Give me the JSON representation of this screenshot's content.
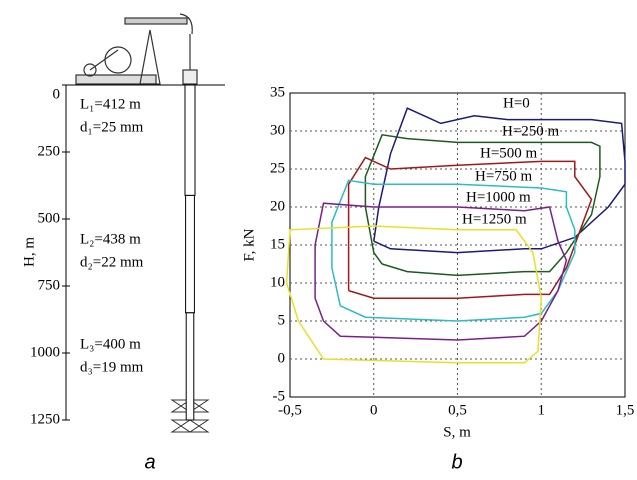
{
  "chart_data": [
    {
      "type": "well",
      "caption": "a",
      "ylabel": "H, m",
      "ylim": [
        0,
        1250
      ],
      "yticks": [
        0,
        250,
        500,
        750,
        1000,
        1250
      ],
      "sections": [
        {
          "label": "L₁=412 m",
          "diameter_label": "d₁=25 mm",
          "length": 412,
          "diameter": 25
        },
        {
          "label": "L₂=438 m",
          "diameter_label": "d₂=22 mm",
          "length": 438,
          "diameter": 22
        },
        {
          "label": "L₃=400 m",
          "diameter_label": "d₃=19 mm",
          "length": 400,
          "diameter": 19
        }
      ]
    },
    {
      "type": "line",
      "caption": "b",
      "xlabel": "S, m",
      "ylabel": "F, kN",
      "xlim": [
        -0.5,
        1.5
      ],
      "xticks": [
        {
          "value": -0.5,
          "label": "-0,5"
        },
        0,
        {
          "value": 0.5,
          "label": "0,5"
        },
        1,
        {
          "value": 1.5,
          "label": "1,5"
        }
      ],
      "ylim": [
        -5,
        35
      ],
      "yticks": [
        -5,
        0,
        5,
        10,
        15,
        20,
        25,
        30,
        35
      ],
      "grid": true,
      "series": [
        {
          "name": "H=0",
          "color": "#1a1a7a",
          "x": [
            0,
            0.1,
            0.5,
            0.9,
            1.0,
            1.2,
            1.4,
            1.5,
            1.5,
            1.48,
            1.3,
            1.0,
            0.8,
            0.6,
            0.4,
            0.2,
            0.1,
            0.03,
            0
          ],
          "values": [
            15.5,
            14.5,
            14,
            14.5,
            14.5,
            16,
            20,
            23,
            26,
            31,
            31.5,
            31.5,
            31.5,
            32,
            31,
            33,
            27,
            20,
            15.5
          ]
        },
        {
          "name": "H=250 m",
          "color": "#1e5a1e",
          "x": [
            0.05,
            0.2,
            0.5,
            0.9,
            1.05,
            1.15,
            1.3,
            1.35,
            1.35,
            1.3,
            1.0,
            0.5,
            0.2,
            0.05,
            -0.05,
            -0.05,
            0,
            0.05
          ],
          "values": [
            12.5,
            11.5,
            11,
            11.5,
            11.5,
            14,
            19,
            24,
            28,
            28.5,
            28.5,
            28.5,
            29,
            29.5,
            24,
            20,
            14,
            12.5
          ]
        },
        {
          "name": "H=500 m",
          "color": "#a01818",
          "x": [
            -0.15,
            0,
            0.5,
            0.9,
            1.05,
            1.15,
            1.25,
            1.3,
            1.2,
            1.2,
            1.0,
            0.5,
            0.1,
            -0.05,
            -0.15,
            -0.15,
            -0.15
          ],
          "values": [
            9,
            8,
            8,
            8.5,
            8.5,
            12,
            18,
            21,
            24,
            26,
            26,
            25.5,
            25,
            26.5,
            23,
            15,
            9
          ]
        },
        {
          "name": "H=750 m",
          "color": "#2bbcc4",
          "x": [
            -0.2,
            -0.05,
            0.5,
            0.9,
            1.0,
            1.1,
            1.2,
            1.2,
            1.15,
            1.15,
            1.0,
            0.5,
            0,
            -0.15,
            -0.25,
            -0.25,
            -0.2
          ],
          "values": [
            7,
            5.5,
            5,
            5.5,
            6,
            9,
            14,
            17,
            20,
            22,
            22.5,
            23,
            23,
            23.5,
            18,
            12,
            7
          ]
        },
        {
          "name": "H=1000 m",
          "color": "#7a1f8a",
          "x": [
            -0.3,
            -0.2,
            0.5,
            0.9,
            1.0,
            1.1,
            1.15,
            1.1,
            1.05,
            0.9,
            0.5,
            0,
            -0.3,
            -0.35,
            -0.35,
            -0.3
          ],
          "values": [
            5,
            3,
            2.5,
            3,
            5,
            9,
            13,
            15.5,
            20,
            19.5,
            20,
            20,
            20.5,
            15,
            8,
            5
          ]
        },
        {
          "name": "H=1250 m",
          "color": "#e6e02a",
          "x": [
            -0.45,
            -0.3,
            0.5,
            0.9,
            0.98,
            1.0,
            0.95,
            0.85,
            0.5,
            0,
            -0.5,
            -0.52,
            -0.45
          ],
          "values": [
            5,
            0,
            -0.5,
            -0.5,
            1,
            8,
            14,
            17,
            17,
            17.5,
            17,
            10,
            5
          ]
        }
      ]
    }
  ]
}
